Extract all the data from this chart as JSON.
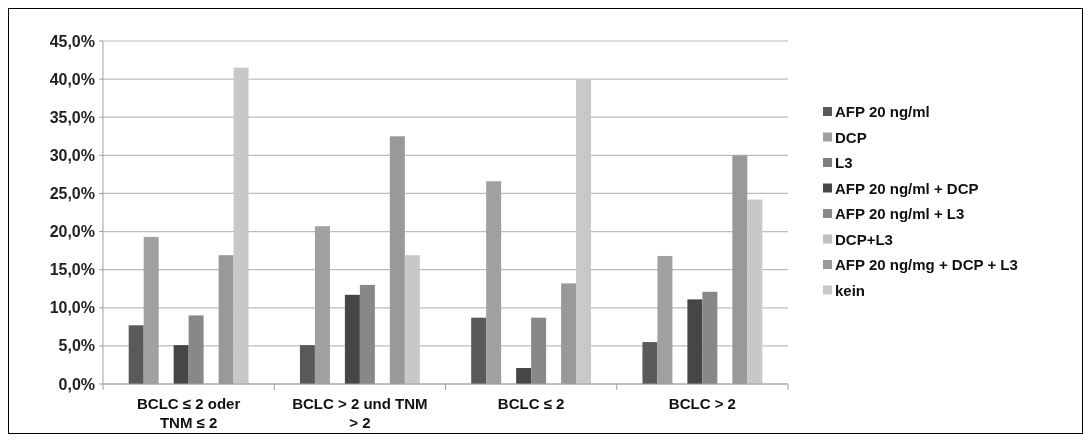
{
  "chart_data": {
    "type": "bar",
    "categories": [
      "BCLC ≤ 2 oder TNM ≤ 2",
      "BCLC > 2 und TNM > 2",
      "BCLC ≤ 2",
      "BCLC > 2"
    ],
    "series": [
      {
        "name": "AFP 20 ng/ml",
        "color": "#595959",
        "values": [
          7.7,
          5.1,
          8.7,
          5.5
        ]
      },
      {
        "name": "DCP",
        "color": "#a0a0a0",
        "values": [
          19.3,
          20.7,
          26.6,
          16.8
        ]
      },
      {
        "name": "L3",
        "color": "#7f7f7f",
        "values": [
          0,
          0,
          0,
          0
        ]
      },
      {
        "name": "AFP 20 ng/ml + DCP",
        "color": "#464646",
        "values": [
          5.1,
          11.7,
          2.1,
          11.1
        ]
      },
      {
        "name": "AFP 20 ng/ml + L3",
        "color": "#888888",
        "values": [
          9.0,
          13.0,
          8.7,
          12.1
        ]
      },
      {
        "name": "DCP+L3",
        "color": "#c0c0c0",
        "values": [
          0,
          0,
          0,
          0
        ]
      },
      {
        "name": "AFP 20 ng/mg + DCP + L3",
        "color": "#999999",
        "values": [
          16.9,
          32.5,
          13.2,
          30.0
        ]
      },
      {
        "name": "kein",
        "color": "#c8c8c8",
        "values": [
          41.5,
          16.9,
          40.0,
          24.2
        ]
      }
    ],
    "ylim": [
      0,
      45
    ],
    "yticks": [
      {
        "value": 0,
        "label": "0,0%"
      },
      {
        "value": 5,
        "label": "5,0%"
      },
      {
        "value": 10,
        "label": "10,0%"
      },
      {
        "value": 15,
        "label": "15,0%"
      },
      {
        "value": 20,
        "label": "20,0%"
      },
      {
        "value": 25,
        "label": "25,0%"
      },
      {
        "value": 30,
        "label": "30,0%"
      },
      {
        "value": 35,
        "label": "35,0%"
      },
      {
        "value": 40,
        "label": "40,0%"
      },
      {
        "value": 45,
        "label": "45,0%"
      }
    ],
    "grid": "y",
    "legend": "right"
  }
}
